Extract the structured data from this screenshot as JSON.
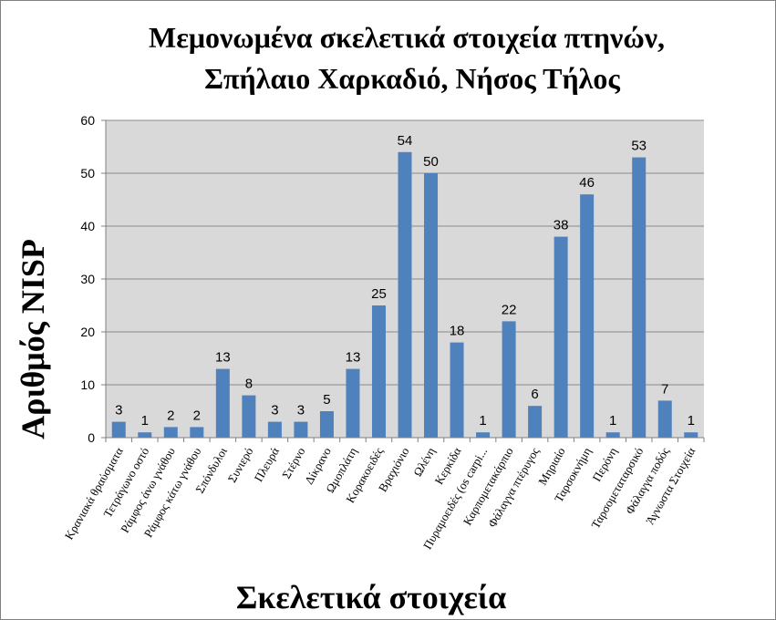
{
  "chart_data": {
    "type": "bar",
    "title_lines": [
      "Μεμονωμένα σκελετικά στοιχεία πτηνών,",
      "Σπήλαιο Χαρκαδιό, Νήσος Τήλος"
    ],
    "xlabel": "Σκελετικά στοιχεία",
    "ylabel": "Αριθμός NISP",
    "ylim": [
      0,
      60
    ],
    "yticks": [
      0,
      10,
      20,
      30,
      40,
      50,
      60
    ],
    "grid": true,
    "categories": [
      "Κρανιακά θραύσματα",
      "Τετράγωνο οστό",
      "Ράμφος άνω γνάθου",
      "Ράμφος κάτω γνάθου",
      "Σπόνδυλοι",
      "Συνιερό",
      "Πλευρά",
      "Στέρνο",
      "Δίκρανο",
      "Ωμοπλάτη",
      "Κορακοειδές",
      "Βραχιόνιο",
      "Ωλένη",
      "Κερκίδα",
      "Πυραμοειδές (os carpi...",
      "Καρπομετακάρπιο",
      "Φάλαγγα πτέρυγος",
      "Μηριαίο",
      "Ταρσοκνήμη",
      "Περόνη",
      "Ταρσομεταταρσικό",
      "Φάλαγγα ποδός",
      "Άγνωστα Στοιχεία"
    ],
    "values": [
      3,
      1,
      2,
      2,
      13,
      8,
      3,
      3,
      5,
      13,
      25,
      54,
      50,
      18,
      1,
      22,
      6,
      38,
      46,
      1,
      53,
      7,
      1
    ],
    "colors": {
      "bar": "#4f81bd",
      "plot_bg": "#d9d9d9",
      "grid": "#8c8c8c"
    }
  }
}
